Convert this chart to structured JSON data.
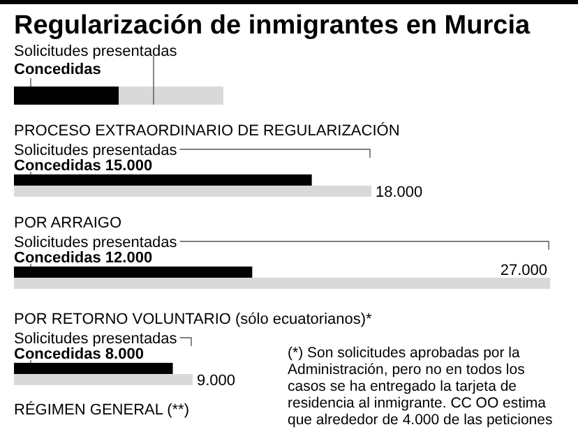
{
  "chart_data": {
    "type": "bar",
    "orientation": "horizontal",
    "title": "Regularización de inmigrantes en Murcia",
    "categories": [
      "PROCESO EXTRAORDINARIO DE REGULARIZACIÓN",
      "POR ARRAIGO",
      "POR RETORNO VOLUNTARIO (sólo ecuatorianos)*",
      "RÉGIMEN GENERAL (**)"
    ],
    "series": [
      {
        "name": "Solicitudes presentadas",
        "color": "#d9d9d9",
        "values": [
          18000,
          27000,
          9000,
          null
        ],
        "value_labels": [
          "18.000",
          "27.000",
          "9.000",
          null
        ]
      },
      {
        "name": "Concedidas",
        "color": "#000000",
        "values": [
          15000,
          12000,
          8000,
          null
        ],
        "value_labels": [
          "15.000",
          "12.000",
          "8.000",
          null
        ]
      }
    ],
    "legend": "top left",
    "annotations": [
      "(*) Son solicitudes aprobadas por la Administración, pero no en todos los casos se ha entregado la tarjeta de residencia al inmigrante. CC OO estima que alrededor de 4.000 de las peticiones"
    ]
  }
}
